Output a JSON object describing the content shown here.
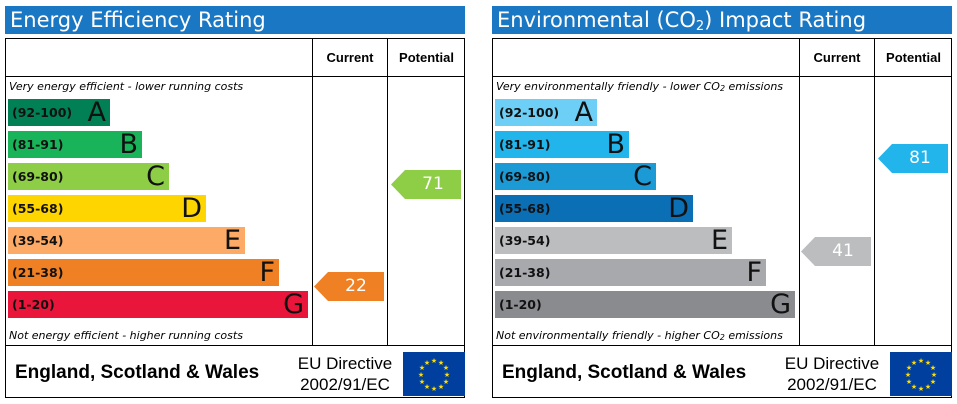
{
  "panels": [
    {
      "title": "Energy Efficiency Rating",
      "col_current": "Current",
      "col_potential": "Potential",
      "top_note": "Very energy efficient - lower running costs",
      "bottom_note": "Not energy efficient - higher running costs",
      "bands": [
        {
          "range": "(92-100)",
          "letter": "A",
          "color": "#008054"
        },
        {
          "range": "(81-91)",
          "letter": "B",
          "color": "#19b459"
        },
        {
          "range": "(69-80)",
          "letter": "C",
          "color": "#8dce46"
        },
        {
          "range": "(55-68)",
          "letter": "D",
          "color": "#ffd500"
        },
        {
          "range": "(39-54)",
          "letter": "E",
          "color": "#fcaa65"
        },
        {
          "range": "(21-38)",
          "letter": "F",
          "color": "#ef8023"
        },
        {
          "range": "(1-20)",
          "letter": "G",
          "color": "#e9153b"
        }
      ],
      "current": {
        "value": "22",
        "color": "#ef8023"
      },
      "potential": {
        "value": "71",
        "color": "#8dce46"
      },
      "footer_region": "England, Scotland & Wales",
      "footer_directive_line1": "EU Directive",
      "footer_directive_line2": "2002/91/EC"
    },
    {
      "title_prefix": "Environmental (CO",
      "title_sub": "2",
      "title_suffix": ") Impact Rating",
      "col_current": "Current",
      "col_potential": "Potential",
      "top_note_prefix": "Very environmentally friendly - lower CO",
      "top_note_sub": "2",
      "top_note_suffix": " emissions",
      "bottom_note_prefix": "Not environmentally friendly - higher CO",
      "bottom_note_sub": "2",
      "bottom_note_suffix": " emissions",
      "bands": [
        {
          "range": "(92-100)",
          "letter": "A",
          "color": "#6ecff6"
        },
        {
          "range": "(81-91)",
          "letter": "B",
          "color": "#22b5eb"
        },
        {
          "range": "(69-80)",
          "letter": "C",
          "color": "#1c9ad6"
        },
        {
          "range": "(55-68)",
          "letter": "D",
          "color": "#0b6fb6"
        },
        {
          "range": "(39-54)",
          "letter": "E",
          "color": "#bbbdbf"
        },
        {
          "range": "(21-38)",
          "letter": "F",
          "color": "#a7a9ac"
        },
        {
          "range": "(1-20)",
          "letter": "G",
          "color": "#898b8e"
        }
      ],
      "current": {
        "value": "41",
        "color": "#bbbdbf"
      },
      "potential": {
        "value": "81",
        "color": "#22b5eb"
      },
      "footer_region": "England, Scotland & Wales",
      "footer_directive_line1": "EU Directive",
      "footer_directive_line2": "2002/91/EC"
    }
  ]
}
